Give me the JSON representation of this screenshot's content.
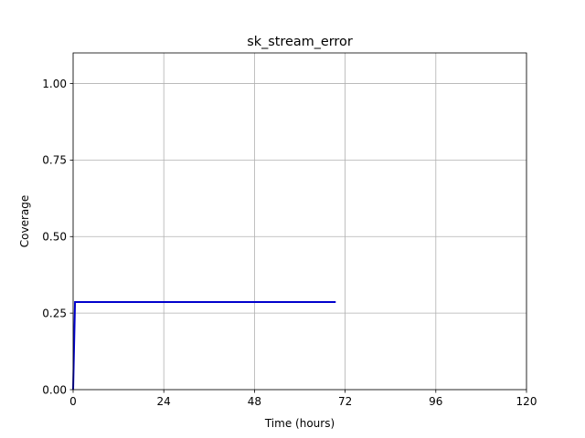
{
  "chart_data": {
    "type": "line",
    "title": "sk_stream_error",
    "xlabel": "Time (hours)",
    "ylabel": "Coverage",
    "xlim": [
      0,
      120
    ],
    "ylim": [
      0,
      1.1
    ],
    "xticks": [
      0,
      24,
      48,
      72,
      96,
      120
    ],
    "xtick_labels": [
      "0",
      "24",
      "48",
      "72",
      "96",
      "120"
    ],
    "yticks": [
      0,
      0.25,
      0.5,
      0.75,
      1.0
    ],
    "ytick_labels": [
      "0.00",
      "0.25",
      "0.50",
      "0.75",
      "1.00"
    ],
    "grid": true,
    "series": [
      {
        "color": "#0000cc",
        "x": [
          0,
          0.5,
          1,
          24,
          48,
          69.5
        ],
        "y": [
          0,
          0.286,
          0.286,
          0.286,
          0.286,
          0.286
        ]
      }
    ]
  }
}
